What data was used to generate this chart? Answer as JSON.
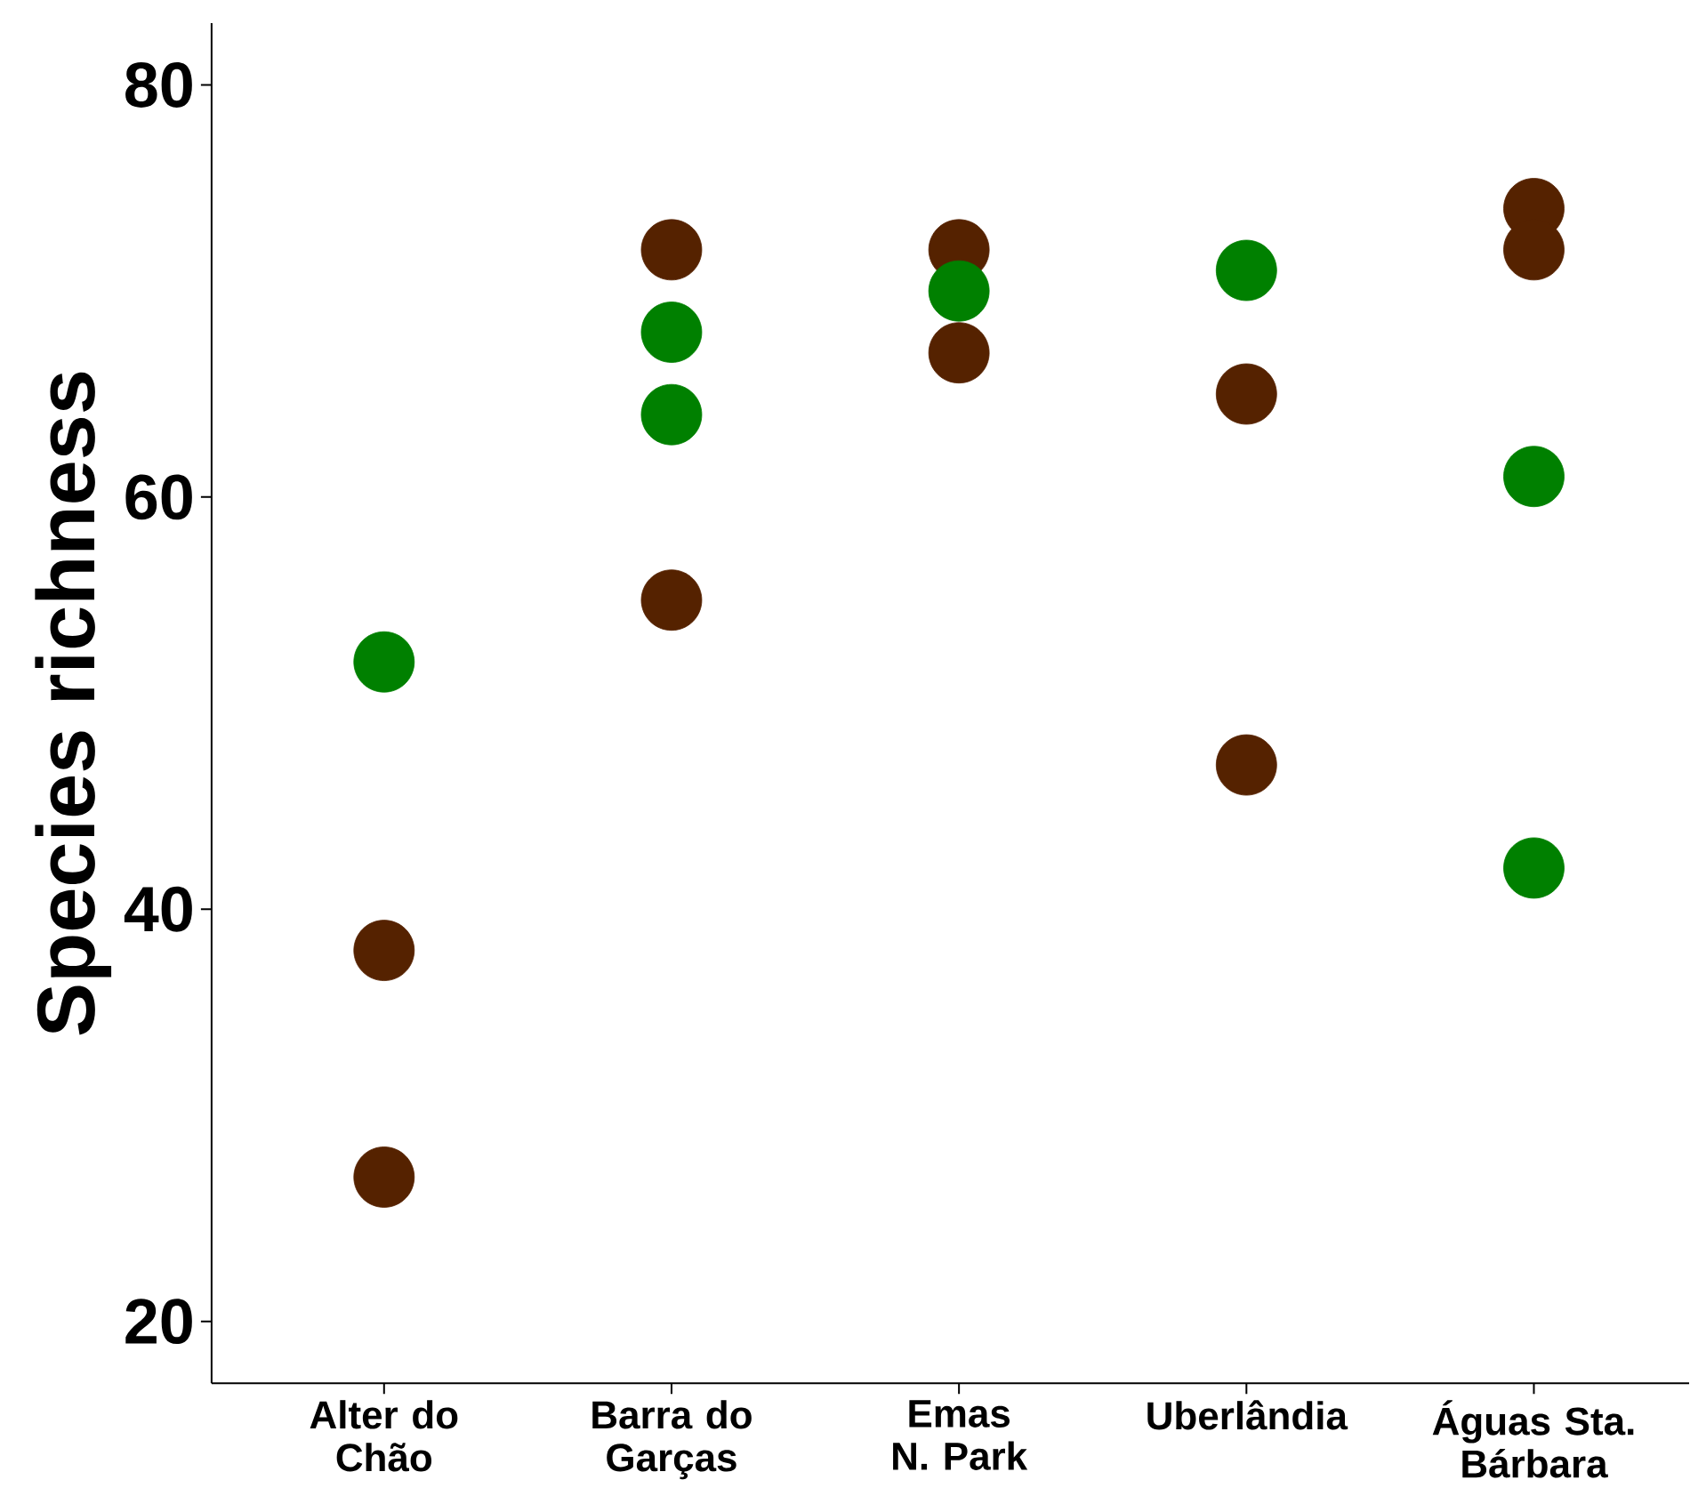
{
  "chart_data": {
    "type": "scatter",
    "ylabel": "Species richness",
    "categories": [
      "Alter do Chão",
      "Barra do Garças",
      "Emas N. Park",
      "Uberlândia",
      "Águas Sta. Bárbara"
    ],
    "series": [
      {
        "color": "#552200",
        "values": [
          38,
          72,
          72,
          65,
          74
        ]
      },
      {
        "color": "#552200",
        "values": [
          27,
          55,
          67,
          47,
          72
        ]
      },
      {
        "color": "#008000",
        "values": [
          52,
          68,
          70,
          71,
          61
        ]
      },
      {
        "color": "#008000",
        "values": [
          null,
          64,
          null,
          null,
          42
        ]
      }
    ],
    "ylim": [
      17,
      83
    ],
    "yticks": [
      20,
      40,
      60,
      80
    ]
  }
}
